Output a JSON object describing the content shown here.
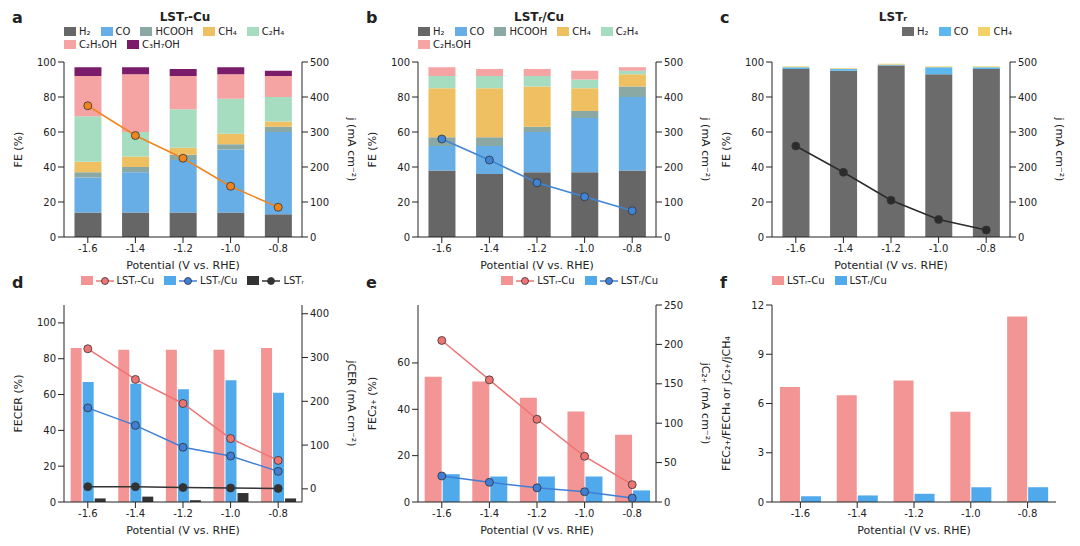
{
  "chart_data": [
    {
      "type": "bar",
      "annotation": "a",
      "title": "LSTᵣ-Cu",
      "x_label": "Potential (V vs. RHE)",
      "y_label": "FE (%)",
      "y2_label": "j (mA cm⁻²)",
      "stacked": true,
      "legend": "upper left",
      "categories": [
        "-1.6",
        "-1.4",
        "-1.2",
        "-1.0",
        "-0.8"
      ],
      "ylim": [
        0,
        100
      ],
      "yticks": [
        0,
        20,
        40,
        60,
        80,
        100
      ],
      "y2lim": [
        0,
        500
      ],
      "y2ticks": [
        0,
        100,
        200,
        300,
        400,
        500
      ],
      "series": [
        {
          "name": "H₂",
          "type": "bar",
          "color": "#666666",
          "values": [
            14,
            14,
            14,
            14,
            13
          ]
        },
        {
          "name": "CO",
          "type": "bar",
          "color": "#67aee6",
          "values": [
            20,
            23,
            30,
            36,
            47
          ]
        },
        {
          "name": "HCOOH",
          "type": "bar",
          "color": "#8aa9a5",
          "values": [
            3,
            3,
            3,
            3,
            3
          ]
        },
        {
          "name": "CH₄",
          "type": "bar",
          "color": "#eec062",
          "values": [
            6,
            6,
            4,
            6,
            3
          ]
        },
        {
          "name": "C₂H₄",
          "type": "bar",
          "color": "#a6dcbf",
          "values": [
            26,
            14,
            22,
            20,
            14
          ]
        },
        {
          "name": "C₂H₅OH",
          "type": "bar",
          "color": "#f5a3a3",
          "values": [
            23,
            33,
            19,
            14,
            12
          ]
        },
        {
          "name": "C₃H₇OH",
          "type": "bar",
          "color": "#7b1c6a",
          "values": [
            5,
            4,
            4,
            4,
            3
          ]
        },
        {
          "type": "line",
          "axis": "y2",
          "color": "#f0851f",
          "marker": "circle",
          "values": [
            375,
            290,
            225,
            145,
            85
          ]
        }
      ]
    },
    {
      "type": "bar",
      "annotation": "b",
      "title": "LSTᵣ/Cu",
      "x_label": "Potential (V vs. RHE)",
      "y_label": "FE (%)",
      "y2_label": "j (mA cm⁻²)",
      "stacked": true,
      "legend": "upper left",
      "categories": [
        "-1.6",
        "-1.4",
        "-1.2",
        "-1.0",
        "-0.8"
      ],
      "ylim": [
        0,
        100
      ],
      "yticks": [
        0,
        20,
        40,
        60,
        80,
        100
      ],
      "y2lim": [
        0,
        500
      ],
      "y2ticks": [
        0,
        100,
        200,
        300,
        400,
        500
      ],
      "series": [
        {
          "name": "H₂",
          "type": "bar",
          "color": "#666666",
          "values": [
            38,
            36,
            37,
            37,
            38
          ]
        },
        {
          "name": "CO",
          "type": "bar",
          "color": "#67aee6",
          "values": [
            14,
            16,
            23,
            31,
            42
          ]
        },
        {
          "name": "HCOOH",
          "type": "bar",
          "color": "#8aa9a5",
          "values": [
            5,
            5,
            3,
            4,
            6
          ]
        },
        {
          "name": "CH₄",
          "type": "bar",
          "color": "#eec062",
          "values": [
            28,
            28,
            23,
            13,
            7
          ]
        },
        {
          "name": "C₂H₄",
          "type": "bar",
          "color": "#a6dcbf",
          "values": [
            7,
            7,
            6,
            5,
            2
          ]
        },
        {
          "name": "C₂H₅OH",
          "type": "bar",
          "color": "#f5a3a3",
          "values": [
            5,
            4,
            4,
            5,
            2
          ]
        },
        {
          "type": "line",
          "axis": "y2",
          "color": "#3f84d6",
          "marker": "circle",
          "values": [
            280,
            220,
            155,
            115,
            75
          ]
        }
      ]
    },
    {
      "type": "bar",
      "annotation": "c",
      "title": "LSTᵣ",
      "x_label": "Potential (V vs. RHE)",
      "y_label": "FE (%)",
      "y2_label": "j (mA cm⁻²)",
      "stacked": true,
      "legend": "upper right",
      "categories": [
        "-1.6",
        "-1.4",
        "-1.2",
        "-1.0",
        "-0.8"
      ],
      "ylim": [
        0,
        100
      ],
      "yticks": [
        0,
        20,
        40,
        60,
        80,
        100
      ],
      "y2lim": [
        0,
        500
      ],
      "y2ticks": [
        0,
        100,
        200,
        300,
        400,
        500
      ],
      "series": [
        {
          "name": "H₂",
          "type": "bar",
          "color": "#6b6b6b",
          "values": [
            96,
            95,
            98,
            93,
            96
          ]
        },
        {
          "name": "CO",
          "type": "bar",
          "color": "#5cb8ef",
          "values": [
            1,
            1,
            0.5,
            4,
            1
          ]
        },
        {
          "name": "CH₄",
          "type": "bar",
          "color": "#f3d26a",
          "values": [
            0.5,
            0.5,
            0.5,
            0.5,
            0.5
          ]
        },
        {
          "type": "line",
          "axis": "y2",
          "color": "#2b2b2b",
          "marker": "circle",
          "values": [
            260,
            185,
            105,
            50,
            20
          ]
        }
      ]
    },
    {
      "type": "bar",
      "annotation": "d",
      "x_label": "Potential (V vs. RHE)",
      "y_label": "FECER (%)",
      "y2_label": "jCER (mA cm⁻²)",
      "legend": "upper right",
      "categories": [
        "-1.6",
        "-1.4",
        "-1.2",
        "-1.0",
        "-0.8"
      ],
      "ylim": [
        0,
        110
      ],
      "yticks": [
        0,
        20,
        40,
        60,
        80,
        100
      ],
      "y2lim": [
        -30,
        420
      ],
      "y2ticks": [
        0,
        100,
        200,
        300,
        400
      ],
      "series": [
        {
          "name": "LSTᵣ-Cu",
          "type": "bar",
          "color": "#f49595",
          "values": [
            86,
            85,
            85,
            85,
            86
          ]
        },
        {
          "name": "LSTᵣ/Cu",
          "type": "bar",
          "color": "#4fa9ea",
          "values": [
            67,
            66,
            63,
            68,
            61
          ]
        },
        {
          "name": "LSTᵣ",
          "type": "bar",
          "color": "#333333",
          "values": [
            2,
            3,
            1,
            5,
            2
          ]
        },
        {
          "name": "LSTᵣ-Cu",
          "type": "line",
          "axis": "y2",
          "color": "#ee7474",
          "marker": "circle",
          "values": [
            320,
            250,
            195,
            115,
            65
          ]
        },
        {
          "name": "LSTᵣ/Cu",
          "type": "line",
          "axis": "y2",
          "color": "#3f7fd6",
          "marker": "circle",
          "values": [
            185,
            145,
            95,
            75,
            40
          ]
        },
        {
          "name": "LSTᵣ",
          "type": "line",
          "axis": "y2",
          "color": "#333333",
          "marker": "circle",
          "values": [
            5,
            5,
            3,
            2,
            1
          ]
        }
      ]
    },
    {
      "type": "bar",
      "annotation": "e",
      "x_label": "Potential (V vs. RHE)",
      "y_label": "FEC₂₊ (%)",
      "y2_label": "jC₂₊ (mA cm⁻²)",
      "legend": "upper right",
      "categories": [
        "-1.6",
        "-1.4",
        "-1.2",
        "-1.0",
        "-0.8"
      ],
      "ylim": [
        0,
        85
      ],
      "yticks": [
        0,
        20,
        40,
        60
      ],
      "y2lim": [
        0,
        250
      ],
      "y2ticks": [
        0,
        50,
        100,
        150,
        200,
        250
      ],
      "series": [
        {
          "name": "LSTᵣ-Cu",
          "type": "bar",
          "color": "#f49595",
          "values": [
            54,
            52,
            45,
            39,
            29
          ]
        },
        {
          "name": "LSTᵣ/Cu",
          "type": "bar",
          "color": "#4fa9ea",
          "values": [
            12,
            11,
            11,
            11,
            5
          ]
        },
        {
          "name": "LSTᵣ-Cu",
          "type": "line",
          "axis": "y2",
          "color": "#ee7474",
          "marker": "circle",
          "values": [
            205,
            155,
            105,
            58,
            22
          ]
        },
        {
          "name": "LSTᵣ/Cu",
          "type": "line",
          "axis": "y2",
          "color": "#3f7fd6",
          "marker": "circle",
          "values": [
            33,
            25,
            18,
            13,
            5
          ]
        }
      ]
    },
    {
      "type": "bar",
      "annotation": "f",
      "x_label": "Potential (V vs. RHE)",
      "y_label": "FEC₂₊/FECH₄ or jC₂₊/jCH₄",
      "legend": "upper left",
      "categories": [
        "-1.6",
        "-1.4",
        "-1.2",
        "-1.0",
        "-0.8"
      ],
      "ylim": [
        0,
        12
      ],
      "yticks": [
        0,
        3,
        6,
        9,
        12
      ],
      "series": [
        {
          "name": "LSTᵣ-Cu",
          "type": "bar",
          "color": "#f49595",
          "values": [
            7.0,
            6.5,
            7.4,
            5.5,
            11.3
          ]
        },
        {
          "name": "LSTᵣ/Cu",
          "type": "bar",
          "color": "#4fa9ea",
          "values": [
            0.35,
            0.4,
            0.5,
            0.9,
            0.9
          ]
        }
      ]
    }
  ]
}
